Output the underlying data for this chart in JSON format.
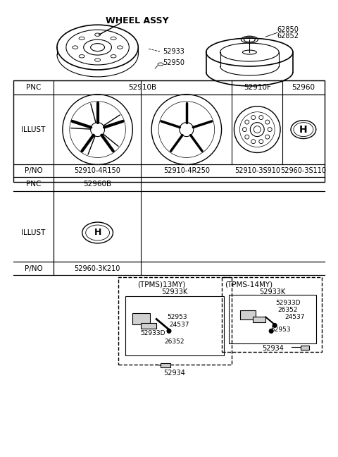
{
  "title": "WHEEL ASSY",
  "background_color": "#ffffff",
  "line_color": "#000000",
  "table_header_bg": "#ffffff",
  "table_border_color": "#555555",
  "top_labels": {
    "wheel_assy": "WHEEL ASSY",
    "part_52933": "52933",
    "part_52950": "52950",
    "part_62850": "62850",
    "part_62852": "62852"
  },
  "table_row1": {
    "pnc_label": "PNC",
    "col1_pnc": "52910B",
    "col2_pnc": "52910F",
    "col3_pnc": "52960"
  },
  "table_row2": {
    "illust_label": "ILLUST"
  },
  "table_row3": {
    "pno_label": "P/NO",
    "col1_pno": "52910-4R150",
    "col2_pno": "52910-4R250",
    "col3_pno": "52910-3S910",
    "col4_pno": "52960-3S110"
  },
  "table_row4": {
    "pnc_label": "PNC",
    "col1_pnc": "52960B"
  },
  "table_row5": {
    "illust_label": "ILLUST"
  },
  "table_row6": {
    "pno_label": "P/NO",
    "col1_pno": "52960-3K210"
  },
  "tpms13": {
    "label": "(TPMS)13MY)",
    "part_top": "52933K",
    "part1": "52953",
    "part2": "24537",
    "part3": "52933D",
    "part4": "26352",
    "part5": "52934"
  },
  "tpms14": {
    "label": "(TPMS-14MY)",
    "part_top": "52933K",
    "part1": "52933D",
    "part2": "26352",
    "part3": "24537",
    "part4": "52953",
    "part5": "52934"
  }
}
